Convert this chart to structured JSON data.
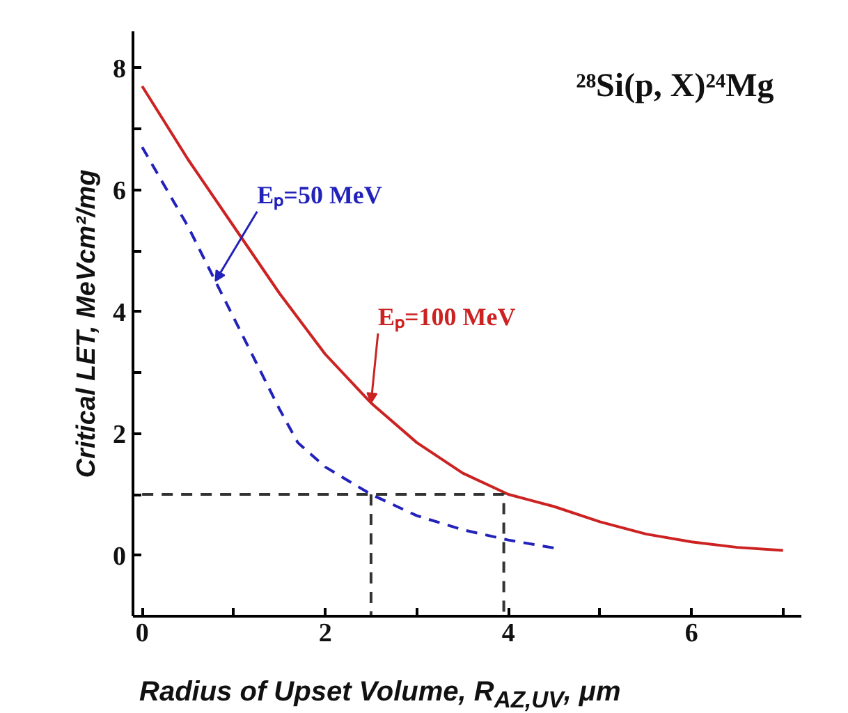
{
  "chart_data": {
    "type": "line",
    "title": "²⁸Si(p, X)²⁴Mg",
    "xlabel": "Radius of Upset Volume, R$_{AZ,UV}$, μm",
    "ylabel": "Critical LET, MeVcm²/mg",
    "series": [
      {
        "name": "Eₚ=100 MeV",
        "color": "#cc2222",
        "line_style": "solid",
        "x": [
          0,
          0.5,
          1,
          1.5,
          2,
          2.5,
          3,
          3.5,
          4,
          4.5,
          5,
          5.5,
          6,
          6.5,
          7
        ],
        "values": [
          7.7,
          6.5,
          5.4,
          4.3,
          3.3,
          2.5,
          1.85,
          1.35,
          1.0,
          0.8,
          0.55,
          0.35,
          0.22,
          0.13,
          0.08
        ]
      },
      {
        "name": "Eₚ=50 MeV",
        "color": "#2222bb",
        "line_style": "dashed",
        "x": [
          0,
          0.5,
          0.8,
          1,
          1.5,
          1.7,
          2,
          2.5,
          3,
          3.5,
          4,
          4.5
        ],
        "values": [
          6.7,
          5.4,
          4.5,
          3.9,
          2.4,
          1.85,
          1.45,
          1.0,
          0.65,
          0.42,
          0.25,
          0.12
        ]
      },
      {
        "color": "#333333",
        "line_style": "dashed",
        "x": [
          0,
          3.95,
          3.95
        ],
        "values": [
          1,
          1,
          -1
        ]
      },
      {
        "color": "#333333",
        "line_style": "dashed",
        "x": [
          2.5,
          2.5
        ],
        "values": [
          1,
          -1
        ]
      }
    ],
    "xlim": [
      -0.1,
      7.2
    ],
    "ylim": [
      -1,
      8.6
    ],
    "xticks": [
      0,
      {
        "value": 1,
        "label": null
      },
      2,
      {
        "value": 3,
        "label": null
      },
      4,
      {
        "value": 5,
        "label": null
      },
      6,
      {
        "value": 7,
        "label": null
      }
    ],
    "yticks": [
      0,
      {
        "value": 1,
        "label": null
      },
      2,
      {
        "value": 3,
        "label": null
      },
      4,
      {
        "value": 5,
        "label": null
      },
      6,
      {
        "value": 7,
        "label": null
      },
      8
    ],
    "grid": false,
    "legend": false,
    "marker": "none"
  }
}
